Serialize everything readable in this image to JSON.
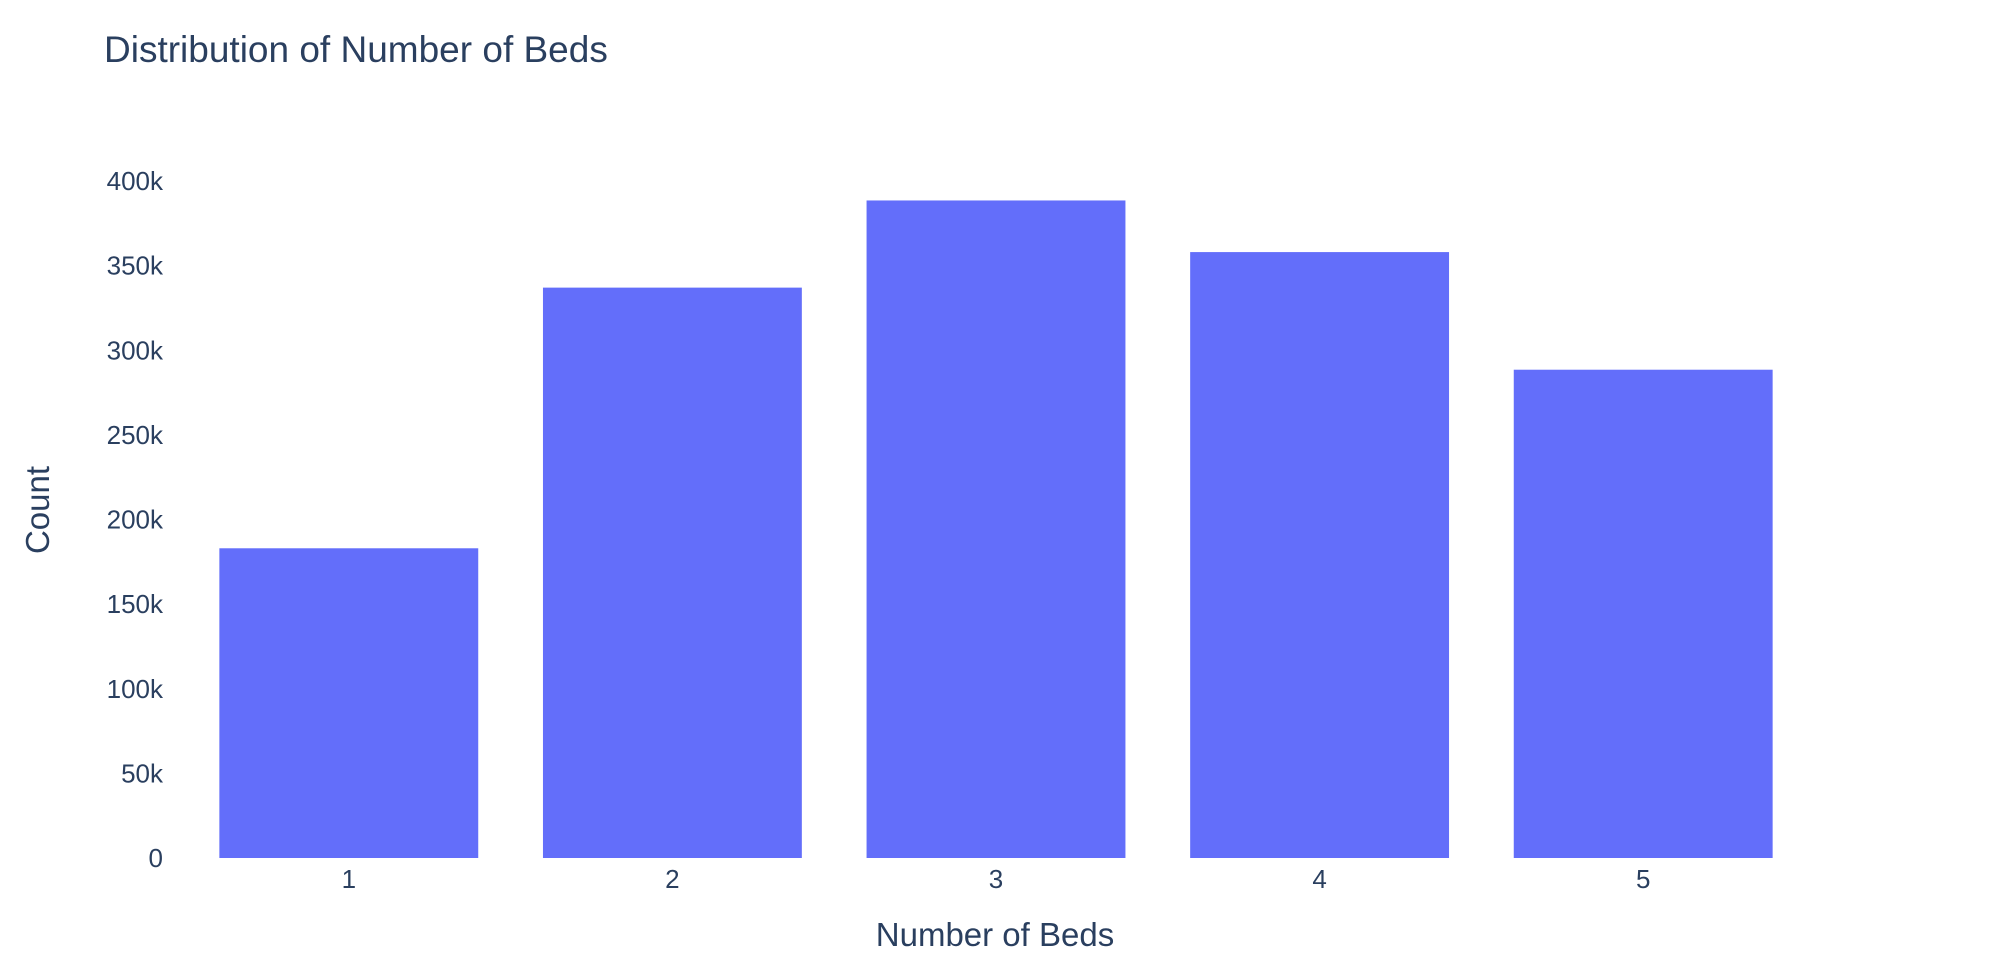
{
  "chart_data": {
    "type": "bar",
    "title": "Distribution of Number of Beds",
    "xlabel": "Number of Beds",
    "ylabel": "Count",
    "categories": [
      "1",
      "2",
      "3",
      "4",
      "5"
    ],
    "values": [
      183000,
      337000,
      388500,
      358000,
      288500
    ],
    "ylim": [
      0,
      410000
    ],
    "yticks": [
      {
        "value": 0,
        "label": "0"
      },
      {
        "value": 50000,
        "label": "50k"
      },
      {
        "value": 100000,
        "label": "100k"
      },
      {
        "value": 150000,
        "label": "150k"
      },
      {
        "value": 200000,
        "label": "200k"
      },
      {
        "value": 250000,
        "label": "250k"
      },
      {
        "value": 300000,
        "label": "300k"
      },
      {
        "value": 350000,
        "label": "350k"
      },
      {
        "value": 400000,
        "label": "400k"
      }
    ],
    "bar_color": "#636efa",
    "grid": false,
    "legend": "none"
  }
}
